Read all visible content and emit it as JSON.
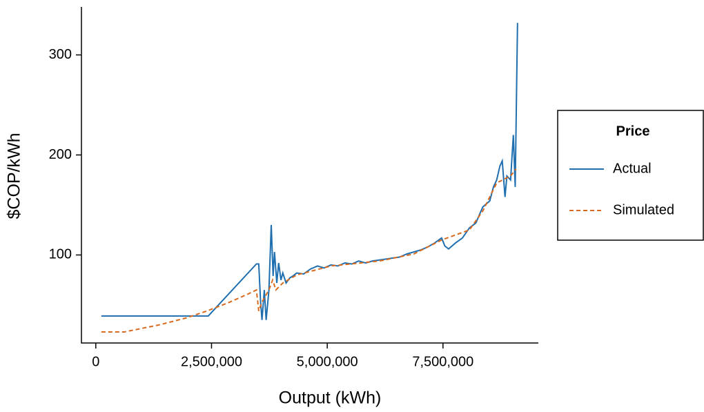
{
  "chart_data": {
    "type": "line",
    "x_label": "Output (kWh)",
    "y_label": "$COP/kWh",
    "legend_title": "Price",
    "legend_position": "right",
    "xlim": [
      -310000,
      9560000
    ],
    "xticks": [
      0,
      {
        "value": 2500000,
        "label": "2,500,000"
      },
      {
        "value": 5000000,
        "label": "5,000,000"
      },
      {
        "value": 7500000,
        "label": "7,500,000"
      }
    ],
    "ylim": [
      12,
      348
    ],
    "yticks": [
      100,
      200,
      300
    ],
    "grid": false,
    "series": [
      {
        "name": "Actual",
        "color": "#1f6fb0",
        "dash": false,
        "x": [
          120000,
          2430000,
          3470000,
          3520000,
          3560000,
          3590000,
          3640000,
          3680000,
          3740000,
          3790000,
          3830000,
          3860000,
          3910000,
          3950000,
          4000000,
          4040000,
          4110000,
          4190000,
          4260000,
          4340000,
          4490000,
          4640000,
          4790000,
          4930000,
          5080000,
          5230000,
          5380000,
          5530000,
          5680000,
          5830000,
          5980000,
          6130000,
          6280000,
          6430000,
          6570000,
          6720000,
          6870000,
          7020000,
          7170000,
          7320000,
          7470000,
          7540000,
          7620000,
          7770000,
          7920000,
          8070000,
          8210000,
          8360000,
          8510000,
          8590000,
          8660000,
          8730000,
          8780000,
          8840000,
          8880000,
          8960000,
          9020000,
          9060000,
          9110000
        ],
        "values": [
          39,
          39,
          91,
          91,
          53,
          35,
          65,
          35,
          65,
          130,
          79,
          103,
          72,
          92,
          75,
          82,
          72,
          77,
          79,
          82,
          81,
          86,
          89,
          87,
          90,
          89,
          92,
          91,
          94,
          92,
          94,
          95,
          96,
          97,
          98,
          101,
          103,
          105,
          108,
          112,
          117,
          109,
          106,
          112,
          117,
          127,
          132,
          148,
          154,
          168,
          175,
          189,
          194,
          158,
          179,
          175,
          220,
          168,
          332
        ]
      },
      {
        "name": "Simulated",
        "color": "#d9691c",
        "dash": true,
        "x": [
          120000,
          610000,
          1360000,
          1950000,
          2400000,
          2850000,
          3290000,
          3470000,
          3520000,
          3590000,
          3740000,
          3820000,
          3890000,
          4040000,
          4340000,
          5080000,
          6130000,
          6870000,
          7470000,
          8070000,
          8360000,
          8660000,
          8960000,
          9080000
        ],
        "values": [
          23,
          23,
          30,
          37,
          44,
          52,
          61,
          65,
          44,
          53,
          65,
          75,
          65,
          72,
          80,
          89,
          94,
          101,
          115,
          125,
          144,
          172,
          179,
          186
        ]
      }
    ]
  }
}
